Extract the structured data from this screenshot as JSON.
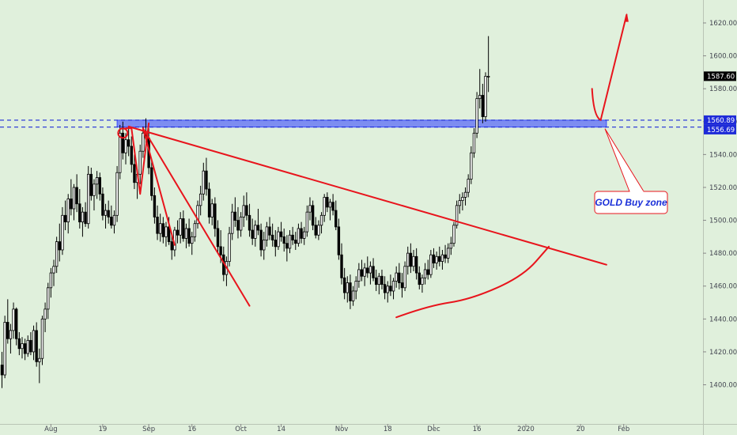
{
  "chart_data": {
    "type": "candlestick",
    "title": "",
    "ylim": [
      1380,
      1630
    ],
    "y_ticks": [
      1400,
      1420,
      1440,
      1460,
      1480,
      1500,
      1520,
      1540,
      1560,
      1580,
      1600,
      1620
    ],
    "y_tick_labels": [
      "1400.00",
      "1420.00",
      "1440.00",
      "1460.00",
      "1480.00",
      "1500.00",
      "1520.00",
      "1540.00",
      "1560.00",
      "1580.00",
      "1600.00",
      "1620.00"
    ],
    "x_tick_labels": [
      {
        "index": 17,
        "label": "Aug"
      },
      {
        "index": 35,
        "label": "19"
      },
      {
        "index": 51,
        "label": "Sep"
      },
      {
        "index": 66,
        "label": "16"
      },
      {
        "index": 83,
        "label": "Oct"
      },
      {
        "index": 97,
        "label": "14"
      },
      {
        "index": 118,
        "label": "Nov"
      },
      {
        "index": 134,
        "label": "18"
      },
      {
        "index": 150,
        "label": "Dec"
      },
      {
        "index": 165,
        "label": "16"
      },
      {
        "index": 182,
        "label": "2020"
      },
      {
        "index": 201,
        "label": "20"
      },
      {
        "index": 216,
        "label": "Feb"
      }
    ],
    "price_tags": [
      {
        "label": "1587.60",
        "value": 1587.6,
        "color": "#000000"
      },
      {
        "label": "1560.89",
        "value": 1560.89,
        "color": "#1e2bd8"
      },
      {
        "label": "1556.69",
        "value": 1556.69,
        "color": "#1e2bd8"
      }
    ],
    "buy_zone": {
      "low": 1556.69,
      "high": 1560.89,
      "x_start_index": 40,
      "x_end_index": 210
    },
    "annotation": {
      "text": "GOLD Buy zone"
    },
    "up_color": "#ffffff",
    "down_color": "#000000",
    "drawing_color": "#e8141c",
    "zone_color": "#3b4bff",
    "candles": [
      [
        1412,
        1420,
        1398,
        1406
      ],
      [
        1406,
        1442,
        1404,
        1438
      ],
      [
        1438,
        1452,
        1425,
        1428
      ],
      [
        1428,
        1437,
        1419,
        1433
      ],
      [
        1433,
        1450,
        1428,
        1446
      ],
      [
        1446,
        1447,
        1424,
        1428
      ],
      [
        1428,
        1432,
        1418,
        1422
      ],
      [
        1422,
        1429,
        1416,
        1425
      ],
      [
        1425,
        1428,
        1415,
        1419
      ],
      [
        1419,
        1430,
        1417,
        1427
      ],
      [
        1427,
        1432,
        1418,
        1420
      ],
      [
        1420,
        1436,
        1415,
        1433
      ],
      [
        1433,
        1438,
        1411,
        1414
      ],
      [
        1414,
        1422,
        1401,
        1416
      ],
      [
        1416,
        1442,
        1412,
        1440
      ],
      [
        1440,
        1450,
        1432,
        1446
      ],
      [
        1446,
        1462,
        1440,
        1459
      ],
      [
        1459,
        1471,
        1453,
        1468
      ],
      [
        1468,
        1476,
        1460,
        1472
      ],
      [
        1472,
        1490,
        1468,
        1487
      ],
      [
        1487,
        1498,
        1475,
        1482
      ],
      [
        1482,
        1508,
        1479,
        1503
      ],
      [
        1503,
        1512,
        1494,
        1499
      ],
      [
        1499,
        1516,
        1492,
        1513
      ],
      [
        1513,
        1525,
        1503,
        1507
      ],
      [
        1507,
        1522,
        1500,
        1520
      ],
      [
        1520,
        1528,
        1505,
        1510
      ],
      [
        1510,
        1519,
        1495,
        1499
      ],
      [
        1499,
        1508,
        1490,
        1505
      ],
      [
        1505,
        1511,
        1496,
        1498
      ],
      [
        1498,
        1533,
        1495,
        1528
      ],
      [
        1528,
        1532,
        1512,
        1515
      ],
      [
        1515,
        1525,
        1506,
        1522
      ],
      [
        1522,
        1530,
        1513,
        1526
      ],
      [
        1526,
        1529,
        1512,
        1516
      ],
      [
        1516,
        1520,
        1500,
        1503
      ],
      [
        1503,
        1510,
        1495,
        1506
      ],
      [
        1506,
        1512,
        1498,
        1502
      ],
      [
        1502,
        1509,
        1495,
        1497
      ],
      [
        1497,
        1506,
        1492,
        1503
      ],
      [
        1503,
        1533,
        1499,
        1529
      ],
      [
        1529,
        1558,
        1525,
        1553
      ],
      [
        1553,
        1560,
        1537,
        1541
      ],
      [
        1541,
        1553,
        1534,
        1549
      ],
      [
        1549,
        1557,
        1539,
        1545
      ],
      [
        1545,
        1551,
        1529,
        1534
      ],
      [
        1534,
        1540,
        1519,
        1523
      ],
      [
        1523,
        1531,
        1513,
        1528
      ],
      [
        1528,
        1546,
        1522,
        1542
      ],
      [
        1542,
        1557,
        1538,
        1553
      ],
      [
        1553,
        1562,
        1547,
        1550
      ],
      [
        1550,
        1556,
        1528,
        1532
      ],
      [
        1532,
        1537,
        1512,
        1515
      ],
      [
        1515,
        1520,
        1498,
        1502
      ],
      [
        1502,
        1509,
        1488,
        1492
      ],
      [
        1492,
        1504,
        1487,
        1498
      ],
      [
        1498,
        1502,
        1486,
        1490
      ],
      [
        1490,
        1499,
        1484,
        1496
      ],
      [
        1496,
        1502,
        1485,
        1487
      ],
      [
        1487,
        1492,
        1476,
        1482
      ],
      [
        1482,
        1496,
        1478,
        1494
      ],
      [
        1494,
        1500,
        1486,
        1491
      ],
      [
        1491,
        1505,
        1486,
        1501
      ],
      [
        1501,
        1506,
        1487,
        1489
      ],
      [
        1489,
        1498,
        1483,
        1495
      ],
      [
        1495,
        1501,
        1484,
        1486
      ],
      [
        1486,
        1493,
        1479,
        1490
      ],
      [
        1490,
        1500,
        1487,
        1498
      ],
      [
        1498,
        1512,
        1495,
        1509
      ],
      [
        1509,
        1521,
        1503,
        1516
      ],
      [
        1516,
        1535,
        1512,
        1530
      ],
      [
        1530,
        1538,
        1515,
        1519
      ],
      [
        1519,
        1523,
        1498,
        1502
      ],
      [
        1502,
        1513,
        1497,
        1510
      ],
      [
        1510,
        1514,
        1490,
        1495
      ],
      [
        1495,
        1500,
        1480,
        1484
      ],
      [
        1484,
        1494,
        1474,
        1479
      ],
      [
        1479,
        1484,
        1463,
        1467
      ],
      [
        1467,
        1478,
        1460,
        1475
      ],
      [
        1475,
        1496,
        1472,
        1492
      ],
      [
        1492,
        1510,
        1488,
        1505
      ],
      [
        1505,
        1514,
        1496,
        1500
      ],
      [
        1500,
        1508,
        1489,
        1494
      ],
      [
        1494,
        1505,
        1490,
        1502
      ],
      [
        1502,
        1515,
        1496,
        1509
      ],
      [
        1509,
        1517,
        1500,
        1503
      ],
      [
        1503,
        1510,
        1490,
        1494
      ],
      [
        1494,
        1501,
        1485,
        1489
      ],
      [
        1489,
        1500,
        1484,
        1497
      ],
      [
        1497,
        1507,
        1491,
        1494
      ],
      [
        1494,
        1498,
        1478,
        1482
      ],
      [
        1482,
        1493,
        1476,
        1488
      ],
      [
        1488,
        1499,
        1484,
        1496
      ],
      [
        1496,
        1502,
        1488,
        1491
      ],
      [
        1491,
        1498,
        1484,
        1488
      ],
      [
        1488,
        1494,
        1478,
        1484
      ],
      [
        1484,
        1496,
        1482,
        1493
      ],
      [
        1493,
        1499,
        1487,
        1490
      ],
      [
        1490,
        1495,
        1481,
        1486
      ],
      [
        1486,
        1491,
        1475,
        1483
      ],
      [
        1483,
        1494,
        1480,
        1491
      ],
      [
        1491,
        1496,
        1485,
        1488
      ],
      [
        1488,
        1493,
        1482,
        1486
      ],
      [
        1486,
        1498,
        1484,
        1495
      ],
      [
        1495,
        1499,
        1486,
        1489
      ],
      [
        1489,
        1496,
        1485,
        1493
      ],
      [
        1493,
        1509,
        1490,
        1505
      ],
      [
        1505,
        1514,
        1500,
        1509
      ],
      [
        1509,
        1512,
        1494,
        1497
      ],
      [
        1497,
        1502,
        1489,
        1491
      ],
      [
        1491,
        1500,
        1488,
        1497
      ],
      [
        1497,
        1505,
        1492,
        1503
      ],
      [
        1503,
        1516,
        1499,
        1514
      ],
      [
        1514,
        1517,
        1505,
        1508
      ],
      [
        1508,
        1513,
        1500,
        1511
      ],
      [
        1511,
        1516,
        1503,
        1506
      ],
      [
        1506,
        1512,
        1494,
        1496
      ],
      [
        1496,
        1501,
        1476,
        1479
      ],
      [
        1479,
        1486,
        1461,
        1465
      ],
      [
        1465,
        1471,
        1452,
        1456
      ],
      [
        1456,
        1466,
        1450,
        1462
      ],
      [
        1462,
        1467,
        1446,
        1451
      ],
      [
        1451,
        1460,
        1448,
        1457
      ],
      [
        1457,
        1466,
        1452,
        1463
      ],
      [
        1463,
        1474,
        1459,
        1470
      ],
      [
        1470,
        1476,
        1463,
        1466
      ],
      [
        1466,
        1474,
        1460,
        1471
      ],
      [
        1471,
        1478,
        1465,
        1468
      ],
      [
        1468,
        1475,
        1461,
        1472
      ],
      [
        1472,
        1477,
        1463,
        1465
      ],
      [
        1465,
        1470,
        1457,
        1461
      ],
      [
        1461,
        1468,
        1455,
        1466
      ],
      [
        1466,
        1470,
        1458,
        1461
      ],
      [
        1461,
        1466,
        1452,
        1456
      ],
      [
        1456,
        1463,
        1450,
        1460
      ],
      [
        1460,
        1467,
        1454,
        1457
      ],
      [
        1457,
        1465,
        1452,
        1463
      ],
      [
        1463,
        1472,
        1459,
        1468
      ],
      [
        1468,
        1474,
        1458,
        1462
      ],
      [
        1462,
        1468,
        1453,
        1459
      ],
      [
        1459,
        1475,
        1457,
        1472
      ],
      [
        1472,
        1484,
        1467,
        1480
      ],
      [
        1480,
        1486,
        1468,
        1472
      ],
      [
        1472,
        1482,
        1469,
        1478
      ],
      [
        1478,
        1483,
        1464,
        1468
      ],
      [
        1468,
        1472,
        1458,
        1461
      ],
      [
        1461,
        1467,
        1456,
        1465
      ],
      [
        1465,
        1474,
        1461,
        1470
      ],
      [
        1470,
        1476,
        1464,
        1467
      ],
      [
        1467,
        1482,
        1465,
        1479
      ],
      [
        1479,
        1483,
        1471,
        1474
      ],
      [
        1474,
        1481,
        1470,
        1478
      ],
      [
        1478,
        1484,
        1472,
        1475
      ],
      [
        1475,
        1482,
        1470,
        1479
      ],
      [
        1479,
        1485,
        1474,
        1477
      ],
      [
        1477,
        1486,
        1474,
        1483
      ],
      [
        1483,
        1490,
        1479,
        1486
      ],
      [
        1486,
        1499,
        1484,
        1497
      ],
      [
        1497,
        1512,
        1495,
        1509
      ],
      [
        1509,
        1516,
        1504,
        1512
      ],
      [
        1512,
        1517,
        1506,
        1514
      ],
      [
        1514,
        1520,
        1509,
        1517
      ],
      [
        1517,
        1528,
        1514,
        1525
      ],
      [
        1525,
        1545,
        1522,
        1541
      ],
      [
        1541,
        1556,
        1538,
        1553
      ],
      [
        1553,
        1578,
        1550,
        1574
      ],
      [
        1574,
        1592,
        1568,
        1576
      ],
      [
        1576,
        1583,
        1559,
        1563
      ],
      [
        1563,
        1590,
        1560,
        1587.6
      ],
      [
        1587.6,
        1612,
        1578,
        1587.6
      ]
    ],
    "drawings": {
      "descending_trendline": [
        [
          44,
          1557
        ],
        [
          210,
          1473
        ]
      ],
      "fan_line_1": [
        [
          49,
          1556
        ],
        [
          60,
          1485
        ]
      ],
      "fan_line_2": [
        [
          49,
          1556
        ],
        [
          86,
          1448
        ]
      ],
      "zigzag": [
        [
          43,
          1556
        ],
        [
          45,
          1556
        ],
        [
          48,
          1516
        ],
        [
          51,
          1559
        ]
      ],
      "circle_marker": {
        "index": 42,
        "value": 1553
      },
      "base_curve": [
        [
          137,
          1441
        ],
        [
          148,
          1448
        ],
        [
          163,
          1452
        ],
        [
          181,
          1466
        ],
        [
          190,
          1484
        ]
      ],
      "projection": [
        [
          205,
          1580
        ],
        [
          208,
          1561
        ],
        [
          217,
          1625
        ]
      ]
    }
  }
}
